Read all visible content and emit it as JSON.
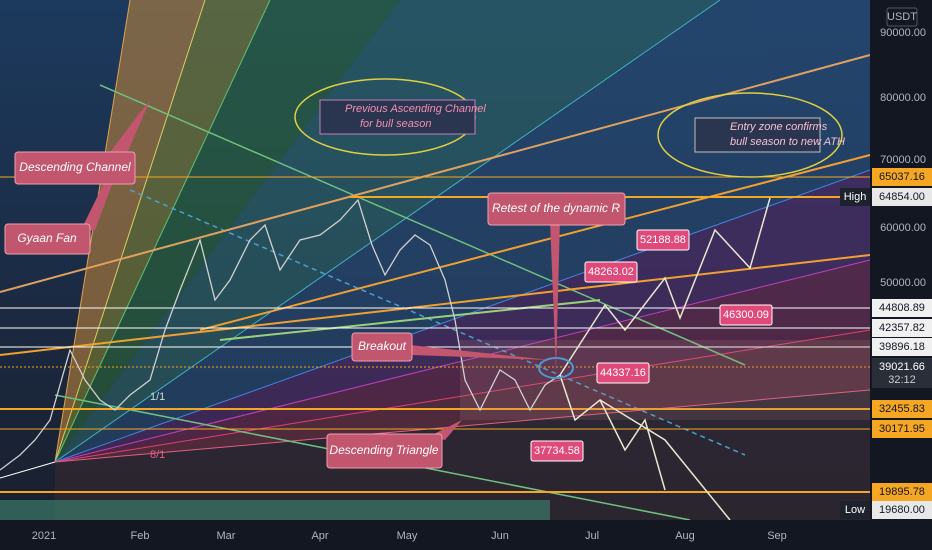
{
  "price_axis": {
    "currency": "USDT",
    "labels": [
      "90000.00",
      "80000.00",
      "70000.00",
      "60000.00",
      "50000.00"
    ]
  },
  "time_axis": [
    "2021",
    "Feb",
    "Mar",
    "Apr",
    "May",
    "Jun",
    "Jul",
    "Aug",
    "Sep"
  ],
  "price_tags": [
    {
      "price": "65037.16"
    },
    {
      "marker": "High",
      "price": "64854.00"
    },
    {
      "price": "44808.89"
    },
    {
      "price": "42357.82"
    },
    {
      "price": "39896.18"
    },
    {
      "price": "39021.66",
      "timer": "32:12"
    },
    {
      "price": "32455.83"
    },
    {
      "price": "30171.95"
    },
    {
      "price": "19895.78"
    },
    {
      "marker": "Low",
      "price": "19680.00"
    }
  ],
  "annotations": [
    "Descending Channel",
    "Gyaan Fan",
    "Previous Ascending Channel",
    "for bull season",
    "Entry zone confirms",
    "bull season to new ATH",
    "Retest of the dynamic R",
    "Breakout",
    "Descending Triangle"
  ],
  "price_labels": [
    "48263.02",
    "52188.88",
    "46300.09",
    "44337.16",
    "37734.58"
  ],
  "fan_labels": [
    "1/1",
    "8/1"
  ]
}
